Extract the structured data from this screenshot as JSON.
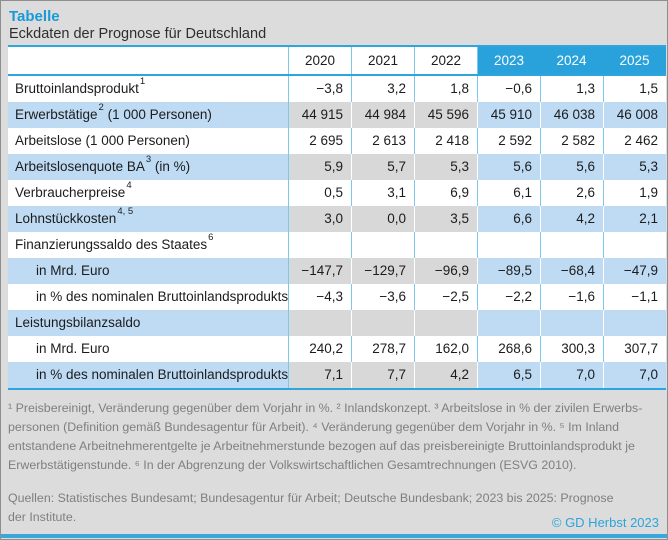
{
  "page": {
    "kicker": "Tabelle",
    "title": "Eckdaten der Prognose für Deutschland",
    "copyright": "© GD Herbst 2023"
  },
  "colors": {
    "accent_blue": "#29a2db",
    "kicker_blue": "#169bd7",
    "rule_blue": "#2ea5dc",
    "row_highlight_blue": "#bedbf3",
    "row_highlight_gray": "#d8d8d8",
    "separator_blue": "#7cc7ee",
    "note_gray": "#7f7f7f",
    "bottom_bar_blue": "#3aa7dc"
  },
  "table": {
    "columns": [
      "2020",
      "2021",
      "2022",
      "2023",
      "2024",
      "2025"
    ],
    "forecast_columns": [
      "2023",
      "2024",
      "2025"
    ],
    "rows": [
      {
        "label": "Bruttoinlandsprodukt",
        "sup": "1",
        "suffix": "",
        "indent": false,
        "shaded": false,
        "values": [
          "−3,8",
          "3,2",
          "1,8",
          "−0,6",
          "1,3",
          "1,5"
        ]
      },
      {
        "label": "Erwerbstätige",
        "sup": "2",
        "suffix": " (1 000 Personen)",
        "indent": false,
        "shaded": true,
        "values": [
          "44 915",
          "44 984",
          "45 596",
          "45 910",
          "46 038",
          "46 008"
        ]
      },
      {
        "label": "Arbeitslose (1 000 Personen)",
        "sup": "",
        "suffix": "",
        "indent": false,
        "shaded": false,
        "values": [
          "2 695",
          "2 613",
          "2 418",
          "2 592",
          "2 582",
          "2 462"
        ]
      },
      {
        "label": "Arbeitslosenquote BA",
        "sup": "3",
        "suffix": " (in %)",
        "indent": false,
        "shaded": true,
        "values": [
          "5,9",
          "5,7",
          "5,3",
          "5,6",
          "5,6",
          "5,3"
        ]
      },
      {
        "label": "Verbraucherpreise",
        "sup": "4",
        "suffix": "",
        "indent": false,
        "shaded": false,
        "values": [
          "0,5",
          "3,1",
          "6,9",
          "6,1",
          "2,6",
          "1,9"
        ]
      },
      {
        "label": "Lohnstückkosten",
        "sup": "4, 5",
        "suffix": "",
        "indent": false,
        "shaded": true,
        "values": [
          "3,0",
          "0,0",
          "3,5",
          "6,6",
          "4,2",
          "2,1"
        ]
      },
      {
        "label": "Finanzierungssaldo des Staates",
        "sup": "6",
        "suffix": "",
        "indent": false,
        "shaded": false,
        "values": [
          "",
          "",
          "",
          "",
          "",
          ""
        ]
      },
      {
        "label": "in Mrd. Euro",
        "sup": "",
        "suffix": "",
        "indent": true,
        "shaded": true,
        "values": [
          "−147,7",
          "−129,7",
          "−96,9",
          "−89,5",
          "−68,4",
          "−47,9"
        ]
      },
      {
        "label": "in % des nominalen Bruttoinlandsprodukts",
        "sup": "",
        "suffix": "",
        "indent": true,
        "shaded": false,
        "values": [
          "−4,3",
          "−3,6",
          "−2,5",
          "−2,2",
          "−1,6",
          "−1,1"
        ]
      },
      {
        "label": "Leistungsbilanzsaldo",
        "sup": "",
        "suffix": "",
        "indent": false,
        "shaded": true,
        "values": [
          "",
          "",
          "",
          "",
          "",
          ""
        ]
      },
      {
        "label": "in Mrd. Euro",
        "sup": "",
        "suffix": "",
        "indent": true,
        "shaded": false,
        "values": [
          "240,2",
          "278,7",
          "162,0",
          "268,6",
          "300,3",
          "307,7"
        ]
      },
      {
        "label": "in % des nominalen Bruttoinlandsprodukts",
        "sup": "",
        "suffix": "",
        "indent": true,
        "shaded": true,
        "values": [
          "7,1",
          "7,7",
          "4,2",
          "6,5",
          "7,0",
          "7,0"
        ]
      }
    ]
  },
  "notes": {
    "footnote_lines": [
      "¹ Preisbereinigt, Veränderung gegenüber dem Vorjahr in %. ² Inlandskonzept. ³ Arbeitslose in % der zivilen Erwerbs-",
      "personen (Definition gemäß Bundesagentur für Arbeit). ⁴ Veränderung gegenüber dem Vorjahr in %. ⁵ Im Inland",
      "entstandene Arbeitnehmerentgelte je Arbeitnehmerstunde bezogen auf das preisbereinigte Bruttoinlandsprodukt je",
      "Erwerbstätigenstunde. ⁶ In der Abgrenzung der Volkswirtschaftlichen Gesamtrechnungen (ESVG 2010)."
    ],
    "sources_lines": [
      "Quellen: Statistisches Bundesamt; Bundesagentur für Arbeit; Deutsche Bundesbank; 2023 bis 2025: Prognose",
      "der Institute."
    ]
  },
  "chart_data": {
    "type": "table",
    "title": "Eckdaten der Prognose für Deutschland",
    "categories": [
      "2020",
      "2021",
      "2022",
      "2023",
      "2024",
      "2025"
    ],
    "forecast_years": [
      "2023",
      "2024",
      "2025"
    ],
    "series": [
      {
        "name": "Bruttoinlandsprodukt",
        "values": [
          -3.8,
          3.2,
          1.8,
          -0.6,
          1.3,
          1.5
        ]
      },
      {
        "name": "Erwerbstätige (1 000 Personen)",
        "values": [
          44915,
          44984,
          45596,
          45910,
          46038,
          46008
        ]
      },
      {
        "name": "Arbeitslose (1 000 Personen)",
        "values": [
          2695,
          2613,
          2418,
          2592,
          2582,
          2462
        ]
      },
      {
        "name": "Arbeitslosenquote BA (in %)",
        "values": [
          5.9,
          5.7,
          5.3,
          5.6,
          5.6,
          5.3
        ]
      },
      {
        "name": "Verbraucherpreise",
        "values": [
          0.5,
          3.1,
          6.9,
          6.1,
          2.6,
          1.9
        ]
      },
      {
        "name": "Lohnstückkosten",
        "values": [
          3.0,
          0.0,
          3.5,
          6.6,
          4.2,
          2.1
        ]
      },
      {
        "name": "Finanzierungssaldo des Staates, in Mrd. Euro",
        "values": [
          -147.7,
          -129.7,
          -96.9,
          -89.5,
          -68.4,
          -47.9
        ]
      },
      {
        "name": "Finanzierungssaldo des Staates, in % des nominalen Bruttoinlandsprodukts",
        "values": [
          -4.3,
          -3.6,
          -2.5,
          -2.2,
          -1.6,
          -1.1
        ]
      },
      {
        "name": "Leistungsbilanzsaldo, in Mrd. Euro",
        "values": [
          240.2,
          278.7,
          162.0,
          268.6,
          300.3,
          307.7
        ]
      },
      {
        "name": "Leistungsbilanzsaldo, in % des nominalen Bruttoinlandsprodukts",
        "values": [
          7.1,
          7.7,
          4.2,
          6.5,
          7.0,
          7.0
        ]
      }
    ]
  }
}
